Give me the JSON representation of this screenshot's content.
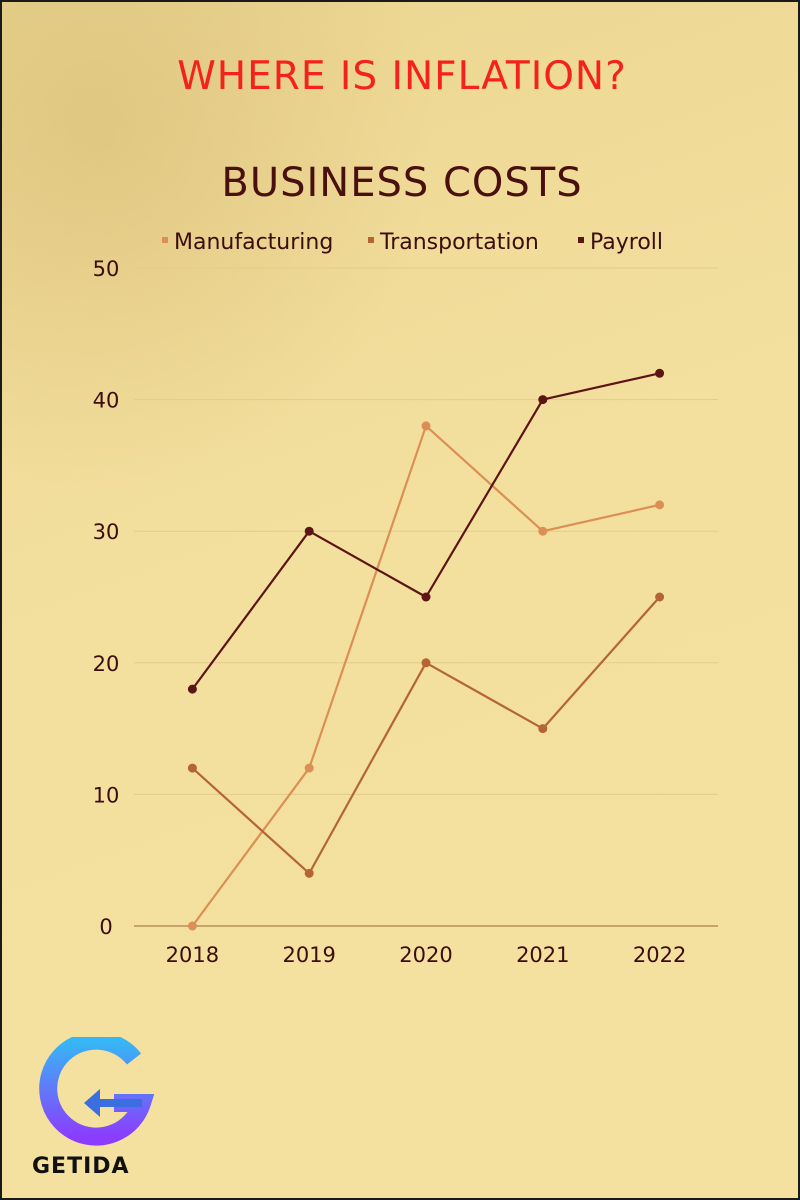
{
  "headline": "WHERE IS INFLATION?",
  "brand": {
    "name": "GETIDA",
    "colors": {
      "gradient_top": "#35b8f5",
      "gradient_bottom": "#8b3dff"
    }
  },
  "chart_data": {
    "type": "line",
    "title": "BUSINESS COSTS",
    "categories": [
      "2018",
      "2019",
      "2020",
      "2021",
      "2022"
    ],
    "series": [
      {
        "name": "Manufacturing",
        "values": [
          0,
          12,
          38,
          30,
          32
        ],
        "color": "#dc8f55"
      },
      {
        "name": "Transportation",
        "values": [
          12,
          4,
          20,
          15,
          25
        ],
        "color": "#b56535"
      },
      {
        "name": "Payroll",
        "values": [
          18,
          30,
          25,
          40,
          42
        ],
        "color": "#5c1414"
      }
    ],
    "y_ticks": [
      0,
      10,
      20,
      30,
      40,
      50
    ],
    "ylim": [
      0,
      50
    ],
    "xlabel": "",
    "ylabel": "",
    "grid": true,
    "legend": "top-center"
  }
}
